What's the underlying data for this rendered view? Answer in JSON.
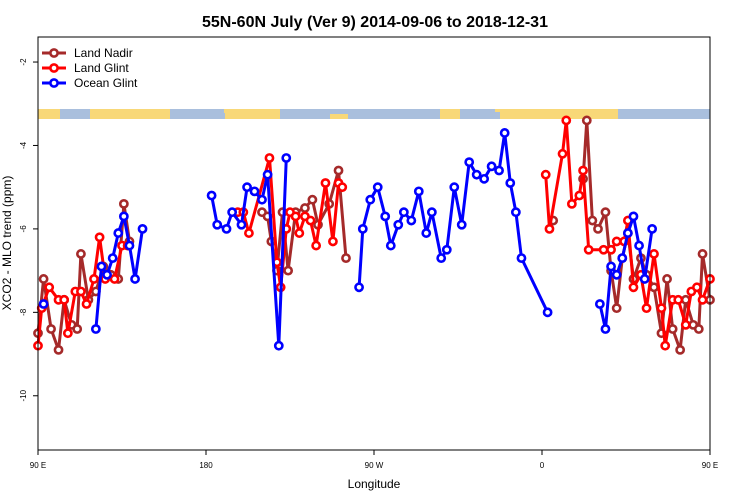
{
  "chart_data": {
    "type": "line",
    "title": "55N-60N July (Ver 9)   2014-09-06 to 2018-12-31",
    "xlabel": "Longitude",
    "ylabel": "XCO2 - MLO trend (ppm)",
    "xlim": [
      90,
      450
    ],
    "ylim": [
      -11.3,
      -1.4
    ],
    "x_ticks": [
      {
        "value": 90,
        "label": "90 E"
      },
      {
        "value": 180,
        "label": "180"
      },
      {
        "value": 270,
        "label": "90 W"
      },
      {
        "value": 360,
        "label": "0"
      },
      {
        "value": 450,
        "label": "90 E"
      },
      {
        "value": 540,
        "label": "180"
      }
    ],
    "y_ticks": [
      {
        "value": -2,
        "label": "-2"
      },
      {
        "value": -4,
        "label": "-4"
      },
      {
        "value": -6,
        "label": "-6"
      },
      {
        "value": -8,
        "label": "-8"
      },
      {
        "value": -10,
        "label": "-10"
      }
    ],
    "grid": false,
    "legend_position": "top-left",
    "series": [
      {
        "name": "Land Nadir",
        "color": "#a52a2a",
        "points": [
          [
            90,
            -8.5
          ],
          [
            93,
            -7.2
          ],
          [
            97,
            -8.4
          ],
          [
            101,
            -8.9
          ],
          [
            104,
            -7.7
          ],
          [
            108,
            -8.3
          ],
          [
            111,
            -8.4
          ],
          [
            113,
            -6.6
          ],
          [
            117,
            -7.7
          ],
          [
            121,
            -7.5
          ],
          [
            125,
            -6.9
          ],
          [
            129,
            -7.1
          ],
          [
            133,
            -7.2
          ],
          [
            136,
            -5.4
          ],
          [
            139,
            -6.3
          ],
          [
            210,
            -5.6
          ],
          [
            213,
            -5.7
          ],
          [
            215,
            -6.3
          ],
          [
            218,
            -7.0
          ],
          [
            221,
            -5.6
          ],
          [
            224,
            -7.0
          ],
          [
            228,
            -5.6
          ],
          [
            233,
            -5.5
          ],
          [
            237,
            -5.3
          ],
          [
            240,
            -5.9
          ],
          [
            246,
            -5.4
          ],
          [
            251,
            -4.6
          ],
          [
            255,
            -6.7
          ],
          [
            366,
            -5.8
          ],
          [
            382,
            -4.8
          ],
          [
            384,
            -3.4
          ],
          [
            387,
            -5.8
          ],
          [
            390,
            -6.0
          ],
          [
            394,
            -5.6
          ],
          [
            397,
            -7.0
          ],
          [
            400,
            -7.9
          ],
          [
            403,
            -6.7
          ],
          [
            406,
            -6.1
          ],
          [
            409,
            -7.2
          ],
          [
            413,
            -6.7
          ],
          [
            416,
            -7.1
          ],
          [
            420,
            -7.4
          ],
          [
            424,
            -8.5
          ],
          [
            427,
            -7.2
          ],
          [
            430,
            -8.4
          ],
          [
            434,
            -8.9
          ],
          [
            437,
            -7.7
          ],
          [
            441,
            -8.3
          ],
          [
            444,
            -8.4
          ],
          [
            446,
            -6.6
          ],
          [
            450,
            -7.7
          ]
        ]
      },
      {
        "name": "Land Glint",
        "color": "#ff0000",
        "points": [
          [
            90,
            -8.8
          ],
          [
            92,
            -7.9
          ],
          [
            96,
            -7.4
          ],
          [
            101,
            -7.7
          ],
          [
            104,
            -7.7
          ],
          [
            106,
            -8.5
          ],
          [
            110,
            -7.5
          ],
          [
            113,
            -7.5
          ],
          [
            116,
            -7.8
          ],
          [
            120,
            -7.2
          ],
          [
            123,
            -6.2
          ],
          [
            126,
            -7.2
          ],
          [
            131,
            -7.2
          ],
          [
            135,
            -6.4
          ],
          [
            138,
            -6.4
          ],
          [
            197,
            -5.6
          ],
          [
            200,
            -5.6
          ],
          [
            203,
            -6.1
          ],
          [
            214,
            -4.3
          ],
          [
            218,
            -6.8
          ],
          [
            220,
            -7.4
          ],
          [
            223,
            -6.0
          ],
          [
            225,
            -5.6
          ],
          [
            228,
            -5.7
          ],
          [
            230,
            -6.1
          ],
          [
            233,
            -5.7
          ],
          [
            236,
            -5.8
          ],
          [
            239,
            -6.4
          ],
          [
            244,
            -4.9
          ],
          [
            248,
            -6.3
          ],
          [
            251,
            -4.9
          ],
          [
            253,
            -5.0
          ],
          [
            362,
            -4.7
          ],
          [
            364,
            -6.0
          ],
          [
            371,
            -4.2
          ],
          [
            373,
            -3.4
          ],
          [
            376,
            -5.4
          ],
          [
            380,
            -5.2
          ],
          [
            382,
            -4.6
          ],
          [
            385,
            -6.5
          ],
          [
            393,
            -6.5
          ],
          [
            397,
            -6.5
          ],
          [
            400,
            -6.3
          ],
          [
            404,
            -6.3
          ],
          [
            406,
            -5.8
          ],
          [
            409,
            -7.4
          ],
          [
            413,
            -7.1
          ],
          [
            416,
            -7.9
          ],
          [
            420,
            -6.6
          ],
          [
            424,
            -7.9
          ],
          [
            426,
            -8.8
          ],
          [
            430,
            -7.7
          ],
          [
            433,
            -7.7
          ],
          [
            437,
            -8.3
          ],
          [
            440,
            -7.5
          ],
          [
            443,
            -7.4
          ],
          [
            446,
            -7.7
          ],
          [
            450,
            -7.2
          ],
          [
            455,
            -6.2
          ]
        ]
      },
      {
        "name": "Ocean Glint",
        "color": "#0000ff",
        "points": [
          [
            93,
            -7.8
          ],
          [
            121,
            -8.4
          ],
          [
            124,
            -6.9
          ],
          [
            127,
            -7.1
          ],
          [
            130,
            -6.7
          ],
          [
            133,
            -6.1
          ],
          [
            136,
            -5.7
          ],
          [
            139,
            -6.4
          ],
          [
            142,
            -7.2
          ],
          [
            146,
            -6.0
          ],
          [
            183,
            -5.2
          ],
          [
            186,
            -5.9
          ],
          [
            191,
            -6.0
          ],
          [
            194,
            -5.6
          ],
          [
            199,
            -5.9
          ],
          [
            202,
            -5.0
          ],
          [
            206,
            -5.1
          ],
          [
            210,
            -5.3
          ],
          [
            213,
            -4.7
          ],
          [
            219,
            -8.8
          ],
          [
            223,
            -4.3
          ],
          [
            262,
            -7.4
          ],
          [
            264,
            -6.0
          ],
          [
            268,
            -5.3
          ],
          [
            272,
            -5.0
          ],
          [
            276,
            -5.7
          ],
          [
            279,
            -6.4
          ],
          [
            283,
            -5.9
          ],
          [
            286,
            -5.6
          ],
          [
            290,
            -5.8
          ],
          [
            294,
            -5.1
          ],
          [
            298,
            -6.1
          ],
          [
            301,
            -5.6
          ],
          [
            306,
            -6.7
          ],
          [
            309,
            -6.5
          ],
          [
            313,
            -5.0
          ],
          [
            317,
            -5.9
          ],
          [
            321,
            -4.4
          ],
          [
            325,
            -4.7
          ],
          [
            329,
            -4.8
          ],
          [
            333,
            -4.5
          ],
          [
            337,
            -4.6
          ],
          [
            340,
            -3.7
          ],
          [
            343,
            -4.9
          ],
          [
            346,
            -5.6
          ],
          [
            349,
            -6.7
          ],
          [
            363,
            -8.0
          ],
          [
            391,
            -7.8
          ],
          [
            394,
            -8.4
          ],
          [
            397,
            -6.9
          ],
          [
            400,
            -7.1
          ],
          [
            403,
            -6.7
          ],
          [
            406,
            -6.1
          ],
          [
            409,
            -5.7
          ],
          [
            412,
            -6.4
          ],
          [
            415,
            -7.2
          ],
          [
            419,
            -6.0
          ]
        ]
      }
    ]
  }
}
